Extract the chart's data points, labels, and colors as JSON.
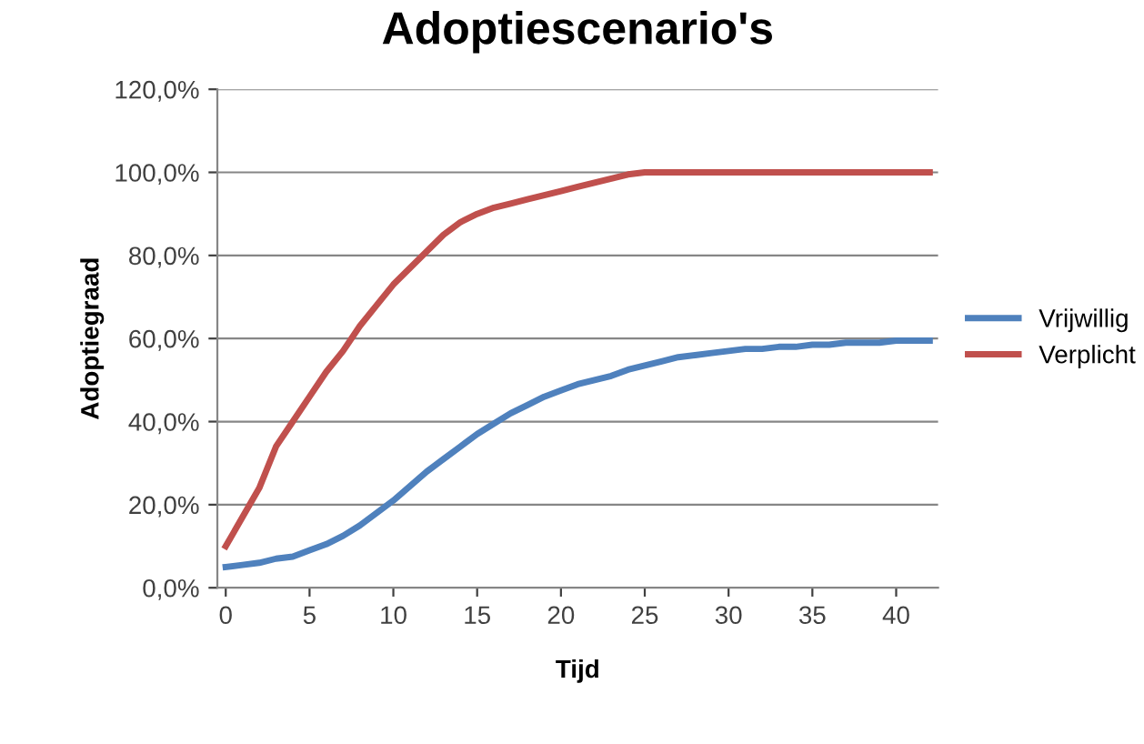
{
  "chart_data": {
    "type": "line",
    "title": "Adoptiescenario's",
    "xlabel": "Tijd",
    "ylabel": "Adoptiegraad",
    "x": [
      0,
      1,
      2,
      3,
      4,
      5,
      6,
      7,
      8,
      9,
      10,
      11,
      12,
      13,
      14,
      15,
      16,
      17,
      18,
      19,
      20,
      21,
      22,
      23,
      24,
      25,
      26,
      27,
      28,
      29,
      30,
      31,
      32,
      33,
      34,
      35,
      36,
      37,
      38,
      39,
      40,
      41,
      42
    ],
    "series": [
      {
        "name": "Vrijwillig",
        "color": "#4f81bd",
        "values": [
          5,
          5.5,
          6,
          7,
          7.5,
          9,
          10.5,
          12.5,
          15,
          18,
          21,
          24.5,
          28,
          31,
          34,
          37,
          39.5,
          42,
          44,
          46,
          47.5,
          49,
          50,
          51,
          52.5,
          53.5,
          54.5,
          55.5,
          56,
          56.5,
          57,
          57.5,
          57.5,
          58,
          58,
          58.5,
          58.5,
          59,
          59,
          59,
          59.5,
          59.5,
          59.5
        ]
      },
      {
        "name": "Verplicht",
        "color": "#c0504d",
        "values": [
          10,
          17,
          24,
          34,
          40,
          46,
          52,
          57,
          63,
          68,
          73,
          77,
          81,
          85,
          88,
          90,
          91.5,
          92.5,
          93.5,
          94.5,
          95.5,
          96.5,
          97.5,
          98.5,
          99.5,
          100,
          100,
          100,
          100,
          100,
          100,
          100,
          100,
          100,
          100,
          100,
          100,
          100,
          100,
          100,
          100,
          100,
          100
        ]
      }
    ],
    "xlim": [
      -0.5,
      42.5
    ],
    "xticks": [
      0,
      5,
      10,
      15,
      20,
      25,
      30,
      35,
      40
    ],
    "ylim": [
      0,
      120
    ],
    "yticks": [
      {
        "value": 0,
        "label": "0,0%"
      },
      {
        "value": 20,
        "label": "20,0%"
      },
      {
        "value": 40,
        "label": "40,0%"
      },
      {
        "value": 60,
        "label": "60,0%"
      },
      {
        "value": 80,
        "label": "80,0%"
      },
      {
        "value": 100,
        "label": "100,0%"
      },
      {
        "value": 120,
        "label": "120,0%"
      }
    ],
    "grid": "y",
    "legend": "right",
    "marker": "none",
    "line_style": "solid"
  }
}
